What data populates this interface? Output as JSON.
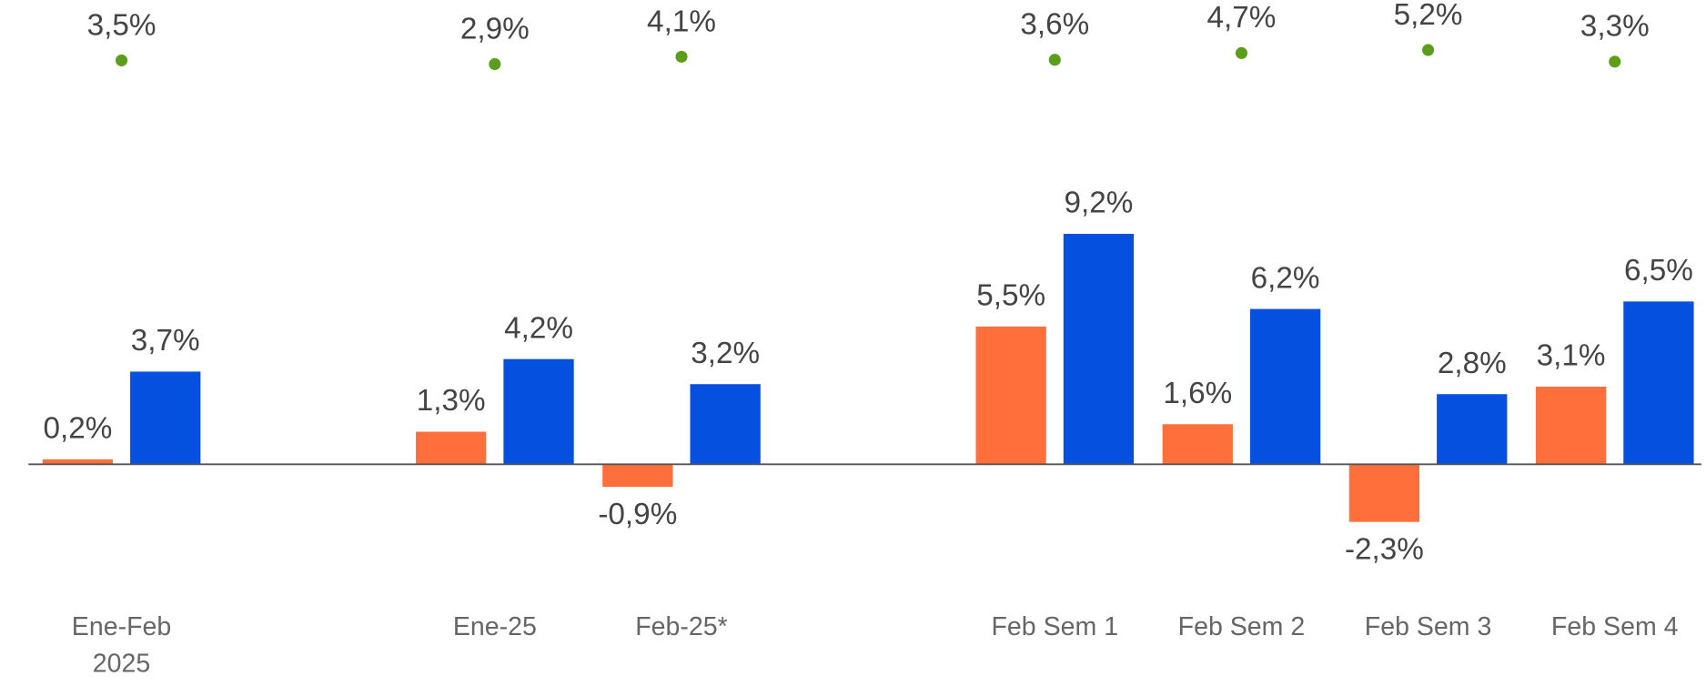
{
  "chart_data": {
    "type": "bar",
    "categories": [
      "Ene-Feb 2025",
      null,
      "Ene-25",
      "Feb-25*",
      null,
      "Feb Sem 1",
      "Feb Sem 2",
      "Feb Sem 3",
      "Feb Sem 4"
    ],
    "ylim": [
      -6,
      14
    ],
    "y2lim": [
      -5,
      13
    ],
    "series": [
      {
        "color": "#ff6f3c",
        "values": [
          0.2,
          null,
          1.3,
          -0.9,
          null,
          5.5,
          1.6,
          -2.3,
          3.1
        ],
        "value_labels": [
          "0,2%",
          null,
          "1,3%",
          "-0,9%",
          null,
          "5,5%",
          "1,6%",
          "-2,3%",
          "3,1%"
        ]
      },
      {
        "color": "#0650e0",
        "values": [
          3.7,
          null,
          4.2,
          3.2,
          null,
          9.2,
          6.2,
          2.8,
          6.5
        ],
        "value_labels": [
          "3,7%",
          null,
          "4,2%",
          "3,2%",
          null,
          "9,2%",
          "6,2%",
          "2,8%",
          "6,5%"
        ]
      },
      {
        "color": "#5a9e1a",
        "axis": "y2",
        "values": [
          3.5,
          null,
          2.9,
          4.1,
          null,
          3.6,
          4.7,
          5.2,
          3.3
        ],
        "value_labels": [
          "3,5%",
          null,
          "2,9%",
          "4,1%",
          null,
          "3,6%",
          "4,7%",
          "5,2%",
          "3,3%"
        ]
      }
    ]
  }
}
